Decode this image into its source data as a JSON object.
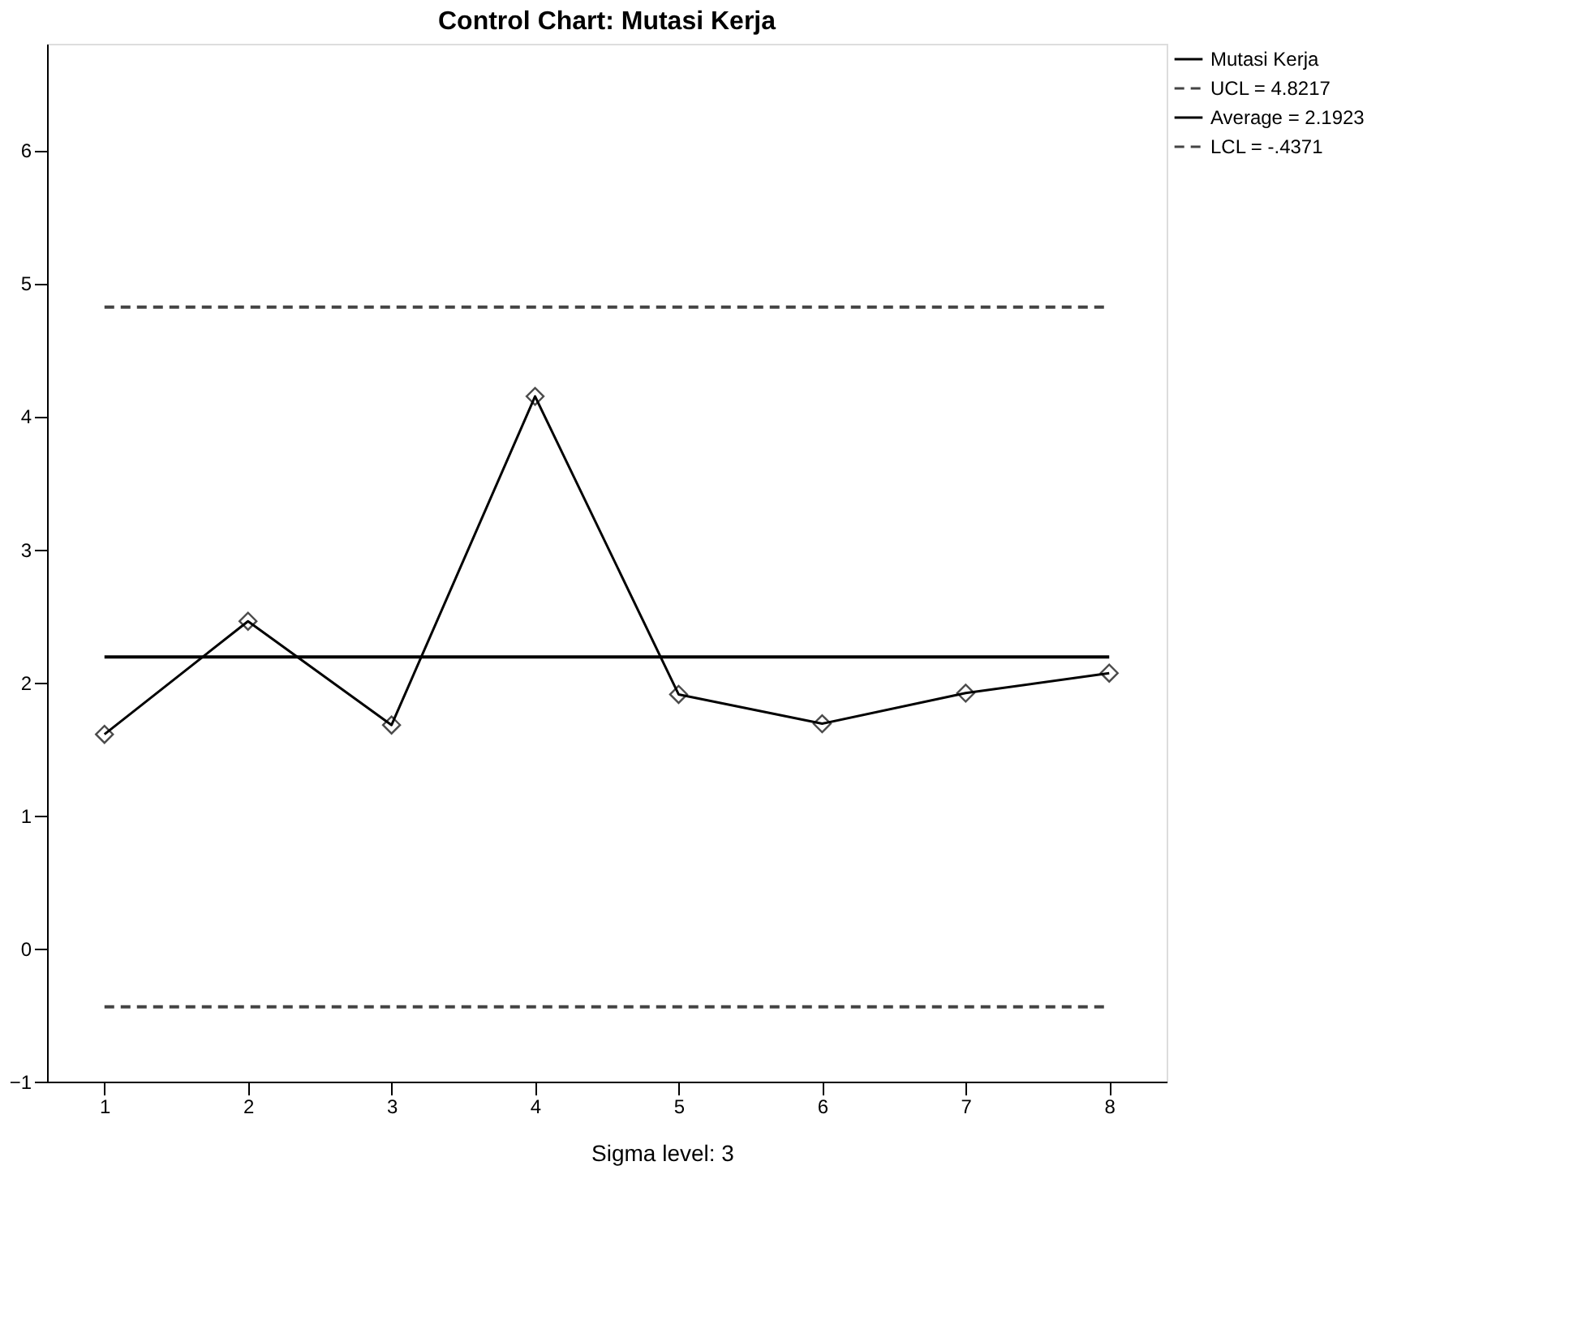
{
  "chart_data": {
    "type": "line",
    "title": "Control Chart: Mutasi Kerja",
    "x": [
      1,
      2,
      3,
      4,
      5,
      6,
      7,
      8
    ],
    "series": [
      {
        "name": "Mutasi Kerja",
        "color": "#000000",
        "values": [
          1.61,
          2.46,
          1.68,
          4.15,
          1.91,
          1.69,
          1.92,
          2.07
        ]
      }
    ],
    "marker": "diamond",
    "line_style": "solid",
    "ref_lines": [
      {
        "axis": "y",
        "value": 4.8217,
        "label": "UCL = 4.8217",
        "color": "#444444",
        "line_style": "dashed"
      },
      {
        "axis": "y",
        "value": 2.1923,
        "label": "Average = 2.1923",
        "color": "#000000",
        "line_style": "solid"
      },
      {
        "axis": "y",
        "value": -0.4371,
        "label": "LCL = -.4371",
        "color": "#444444",
        "line_style": "dashed"
      }
    ],
    "xlim": [
      0.6,
      8.4
    ],
    "xticks": [
      1,
      2,
      3,
      4,
      5,
      6,
      7,
      8
    ],
    "ylim": [
      -1,
      6.8
    ],
    "yticks": [
      -1,
      0,
      1,
      2,
      3,
      4,
      5,
      6
    ],
    "grid": false,
    "legend": "top right",
    "annotations": [
      "Sigma level:     3"
    ]
  }
}
